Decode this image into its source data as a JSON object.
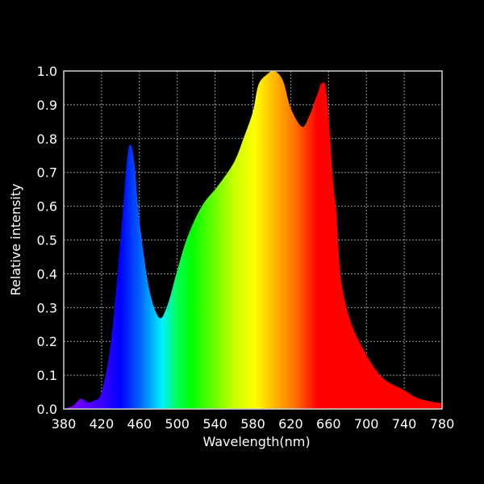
{
  "chart_data": {
    "type": "area",
    "title": "",
    "xlabel": "Wavelength(nm)",
    "ylabel": "Relative intensity",
    "xlim": [
      380,
      780
    ],
    "ylim": [
      0,
      1.0
    ],
    "grid": true,
    "x_ticks": [
      "380",
      "420",
      "460",
      "500",
      "540",
      "580",
      "620",
      "660",
      "700",
      "740",
      "780"
    ],
    "y_ticks": [
      "0.0",
      "0.1",
      "0.2",
      "0.3",
      "0.4",
      "0.5",
      "0.6",
      "0.7",
      "0.8",
      "0.9",
      "1.0"
    ],
    "fill": "spectral gradient (violet to red by wavelength)",
    "series": [
      {
        "x": [
          380,
          390,
          398,
          405,
          412,
          420,
          430,
          440,
          447,
          451,
          455,
          460,
          470,
          481,
          490,
          500,
          511,
          526,
          543,
          560,
          570,
          580,
          586,
          595,
          603,
          612,
          620,
          632,
          640,
          648,
          653,
          658,
          665,
          668,
          673,
          682,
          696,
          716,
          739,
          756,
          779,
          780
        ],
        "y": [
          0.0,
          0.01,
          0.03,
          0.02,
          0.025,
          0.05,
          0.2,
          0.5,
          0.74,
          0.78,
          0.72,
          0.56,
          0.36,
          0.27,
          0.31,
          0.41,
          0.51,
          0.6,
          0.66,
          0.73,
          0.8,
          0.88,
          0.96,
          0.99,
          1.0,
          0.97,
          0.89,
          0.835,
          0.87,
          0.93,
          0.964,
          0.93,
          0.67,
          0.59,
          0.39,
          0.27,
          0.18,
          0.095,
          0.057,
          0.03,
          0.017,
          0.015
        ]
      }
    ],
    "colors": {
      "background": "#000000",
      "grid": "#9a9a9a",
      "axis": "#d0d0d0",
      "spectrum_stops": [
        {
          "nm": 380,
          "color": "#8a00ff"
        },
        {
          "nm": 420,
          "color": "#3a00ff"
        },
        {
          "nm": 440,
          "color": "#0000ff"
        },
        {
          "nm": 460,
          "color": "#0060ff"
        },
        {
          "nm": 484,
          "color": "#00f0ff"
        },
        {
          "nm": 500,
          "color": "#00ff50"
        },
        {
          "nm": 515,
          "color": "#00ff00"
        },
        {
          "nm": 560,
          "color": "#c8ff00"
        },
        {
          "nm": 582,
          "color": "#ffff00"
        },
        {
          "nm": 600,
          "color": "#ffc000"
        },
        {
          "nm": 625,
          "color": "#ff7000"
        },
        {
          "nm": 648,
          "color": "#ff0000"
        },
        {
          "nm": 780,
          "color": "#ff0000"
        }
      ]
    }
  }
}
